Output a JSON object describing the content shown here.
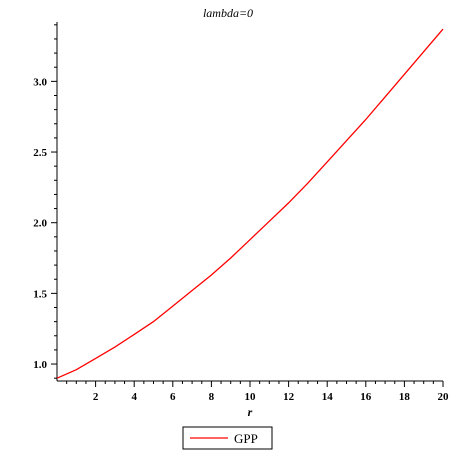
{
  "chart_data": {
    "type": "line",
    "title": "lambda=0",
    "xlabel": "r",
    "ylabel": "",
    "xlim": [
      0,
      20
    ],
    "ylim": [
      0.88,
      3.42
    ],
    "x_ticks": [
      2,
      4,
      6,
      8,
      10,
      12,
      14,
      16,
      18,
      20
    ],
    "y_ticks": [
      1.0,
      1.5,
      2.0,
      2.5,
      3.0
    ],
    "x_tick_labels": [
      "2",
      "4",
      "6",
      "8",
      "10",
      "12",
      "14",
      "16",
      "18",
      "20"
    ],
    "y_tick_labels": [
      "1.0",
      "1.5",
      "2.0",
      "2.5",
      "3.0"
    ],
    "grid": false,
    "legend_position": "bottom-center",
    "series": [
      {
        "name": "GPP",
        "color": "#ff0000",
        "x": [
          0,
          1,
          2,
          3,
          4,
          5,
          6,
          7,
          8,
          9,
          10,
          11,
          12,
          13,
          14,
          15,
          16,
          17,
          18,
          19,
          20
        ],
        "values": [
          0.9,
          0.96,
          1.04,
          1.12,
          1.21,
          1.3,
          1.41,
          1.52,
          1.63,
          1.75,
          1.88,
          2.01,
          2.14,
          2.28,
          2.43,
          2.58,
          2.73,
          2.89,
          3.05,
          3.21,
          3.37
        ]
      }
    ]
  }
}
